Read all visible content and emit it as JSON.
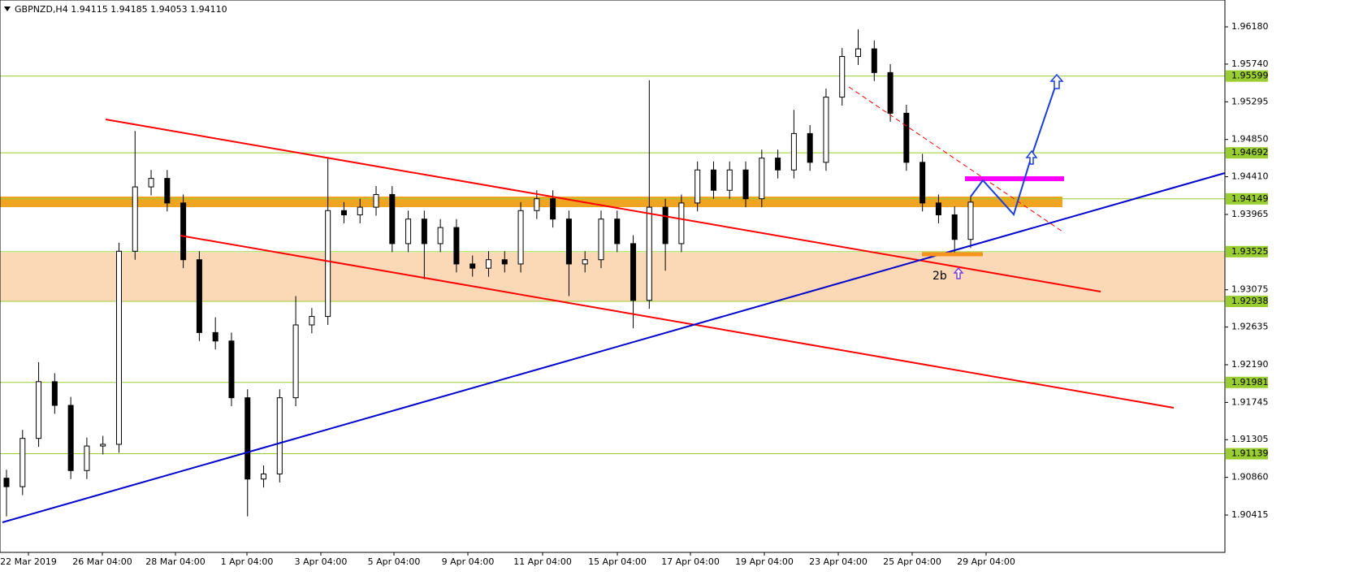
{
  "chart_data": {
    "type": "candlestick",
    "header": "GBPNZD,H4  1.94115 1.94185 1.94053 1.94110",
    "annotation": "2b",
    "x_labels": [
      "22 Mar 2019",
      "26 Mar 04:00",
      "28 Mar 04:00",
      "1 Apr 04:00",
      "3 Apr 04:00",
      "5 Apr 04:00",
      "9 Apr 04:00",
      "11 Apr 04:00",
      "15 Apr 04:00",
      "17 Apr 04:00",
      "19 Apr 04:00",
      "23 Apr 04:00",
      "25 Apr 04:00",
      "29 Apr 04:00"
    ],
    "ylim": [
      1.89974,
      1.96497
    ],
    "yticks": [
      {
        "value": 1.9618,
        "label": "1.96180"
      },
      {
        "value": 1.9574,
        "label": "1.95740"
      },
      1.95295,
      {
        "value": 1.9485,
        "label": "1.94850"
      },
      {
        "value": 1.9441,
        "label": "1.94410"
      },
      1.93965,
      1.93075,
      1.92635,
      {
        "value": 1.9219,
        "label": "1.92190"
      },
      1.91745,
      1.91305,
      {
        "value": 1.9086,
        "label": "1.90860"
      },
      1.90415
    ],
    "levels": [
      1.95599,
      1.94692,
      1.94149,
      1.93525,
      1.92938,
      1.91981,
      1.91139
    ],
    "open": [
      1.9085,
      1.9075,
      1.9132,
      1.9199,
      1.9171,
      1.9094,
      1.9123,
      1.9125,
      1.9353,
      1.9429,
      1.9439,
      1.941,
      1.9343,
      1.9257,
      1.9247,
      1.918,
      1.9084,
      1.909,
      1.918,
      1.9266,
      1.9276,
      1.9401,
      1.9396,
      1.9405,
      1.942,
      1.9362,
      1.9391,
      1.9362,
      1.9381,
      1.9338,
      1.9333,
      1.9343,
      1.9338,
      1.9401,
      1.9415,
      1.9391,
      1.9338,
      1.9343,
      1.9391,
      1.9362,
      1.9295,
      1.9405,
      1.9362,
      1.941,
      1.9449,
      1.9425,
      1.9449,
      1.9415,
      1.9463,
      1.9449,
      1.9492,
      1.9458,
      1.9535,
      1.9583,
      1.9592,
      1.9564,
      1.9516,
      1.9458,
      1.941,
      1.9396,
      1.9367
    ],
    "high": [
      1.9095,
      1.9142,
      1.9222,
      1.9209,
      1.9181,
      1.9133,
      1.9135,
      1.9363,
      1.9495,
      1.9449,
      1.9449,
      1.942,
      1.9353,
      1.9275,
      1.9257,
      1.919,
      1.91,
      1.919,
      1.93,
      1.9286,
      1.9463,
      1.9411,
      1.9415,
      1.943,
      1.943,
      1.9401,
      1.9401,
      1.9391,
      1.9391,
      1.9348,
      1.9353,
      1.9353,
      1.9411,
      1.9425,
      1.9425,
      1.9401,
      1.9353,
      1.9401,
      1.9401,
      1.9372,
      1.9555,
      1.9415,
      1.942,
      1.9459,
      1.9459,
      1.9459,
      1.9459,
      1.9473,
      1.9473,
      1.952,
      1.9502,
      1.9545,
      1.9593,
      1.9615,
      1.9602,
      1.9574,
      1.9526,
      1.9468,
      1.942,
      1.9406,
      1.9419
    ],
    "low": [
      1.904,
      1.9065,
      1.9122,
      1.9161,
      1.9084,
      1.9084,
      1.9113,
      1.9115,
      1.9343,
      1.9419,
      1.94,
      1.9333,
      1.9247,
      1.9237,
      1.917,
      1.904,
      1.9074,
      1.908,
      1.917,
      1.9256,
      1.9266,
      1.9386,
      1.9386,
      1.9395,
      1.9352,
      1.9352,
      1.932,
      1.9352,
      1.9328,
      1.9323,
      1.9323,
      1.9328,
      1.9328,
      1.9391,
      1.9381,
      1.93,
      1.9328,
      1.9333,
      1.9352,
      1.9262,
      1.9285,
      1.933,
      1.9352,
      1.94,
      1.9415,
      1.9415,
      1.9405,
      1.9405,
      1.9439,
      1.9439,
      1.9448,
      1.9448,
      1.9525,
      1.9573,
      1.9554,
      1.9506,
      1.9448,
      1.94,
      1.9386,
      1.935,
      1.9357
    ],
    "close": [
      1.9075,
      1.9132,
      1.9199,
      1.9171,
      1.9094,
      1.9123,
      1.9125,
      1.9353,
      1.9429,
      1.9439,
      1.941,
      1.9343,
      1.9257,
      1.9247,
      1.918,
      1.9084,
      1.909,
      1.918,
      1.9266,
      1.9276,
      1.9401,
      1.9396,
      1.9405,
      1.942,
      1.9362,
      1.9391,
      1.9362,
      1.9381,
      1.9338,
      1.9333,
      1.9343,
      1.9338,
      1.9401,
      1.9415,
      1.9391,
      1.9338,
      1.9343,
      1.9391,
      1.9362,
      1.9295,
      1.9405,
      1.9362,
      1.941,
      1.9449,
      1.9425,
      1.9449,
      1.9415,
      1.9463,
      1.9449,
      1.9492,
      1.9458,
      1.9535,
      1.9583,
      1.9592,
      1.9564,
      1.9516,
      1.9458,
      1.941,
      1.9396,
      1.9367,
      1.9411
    ]
  }
}
